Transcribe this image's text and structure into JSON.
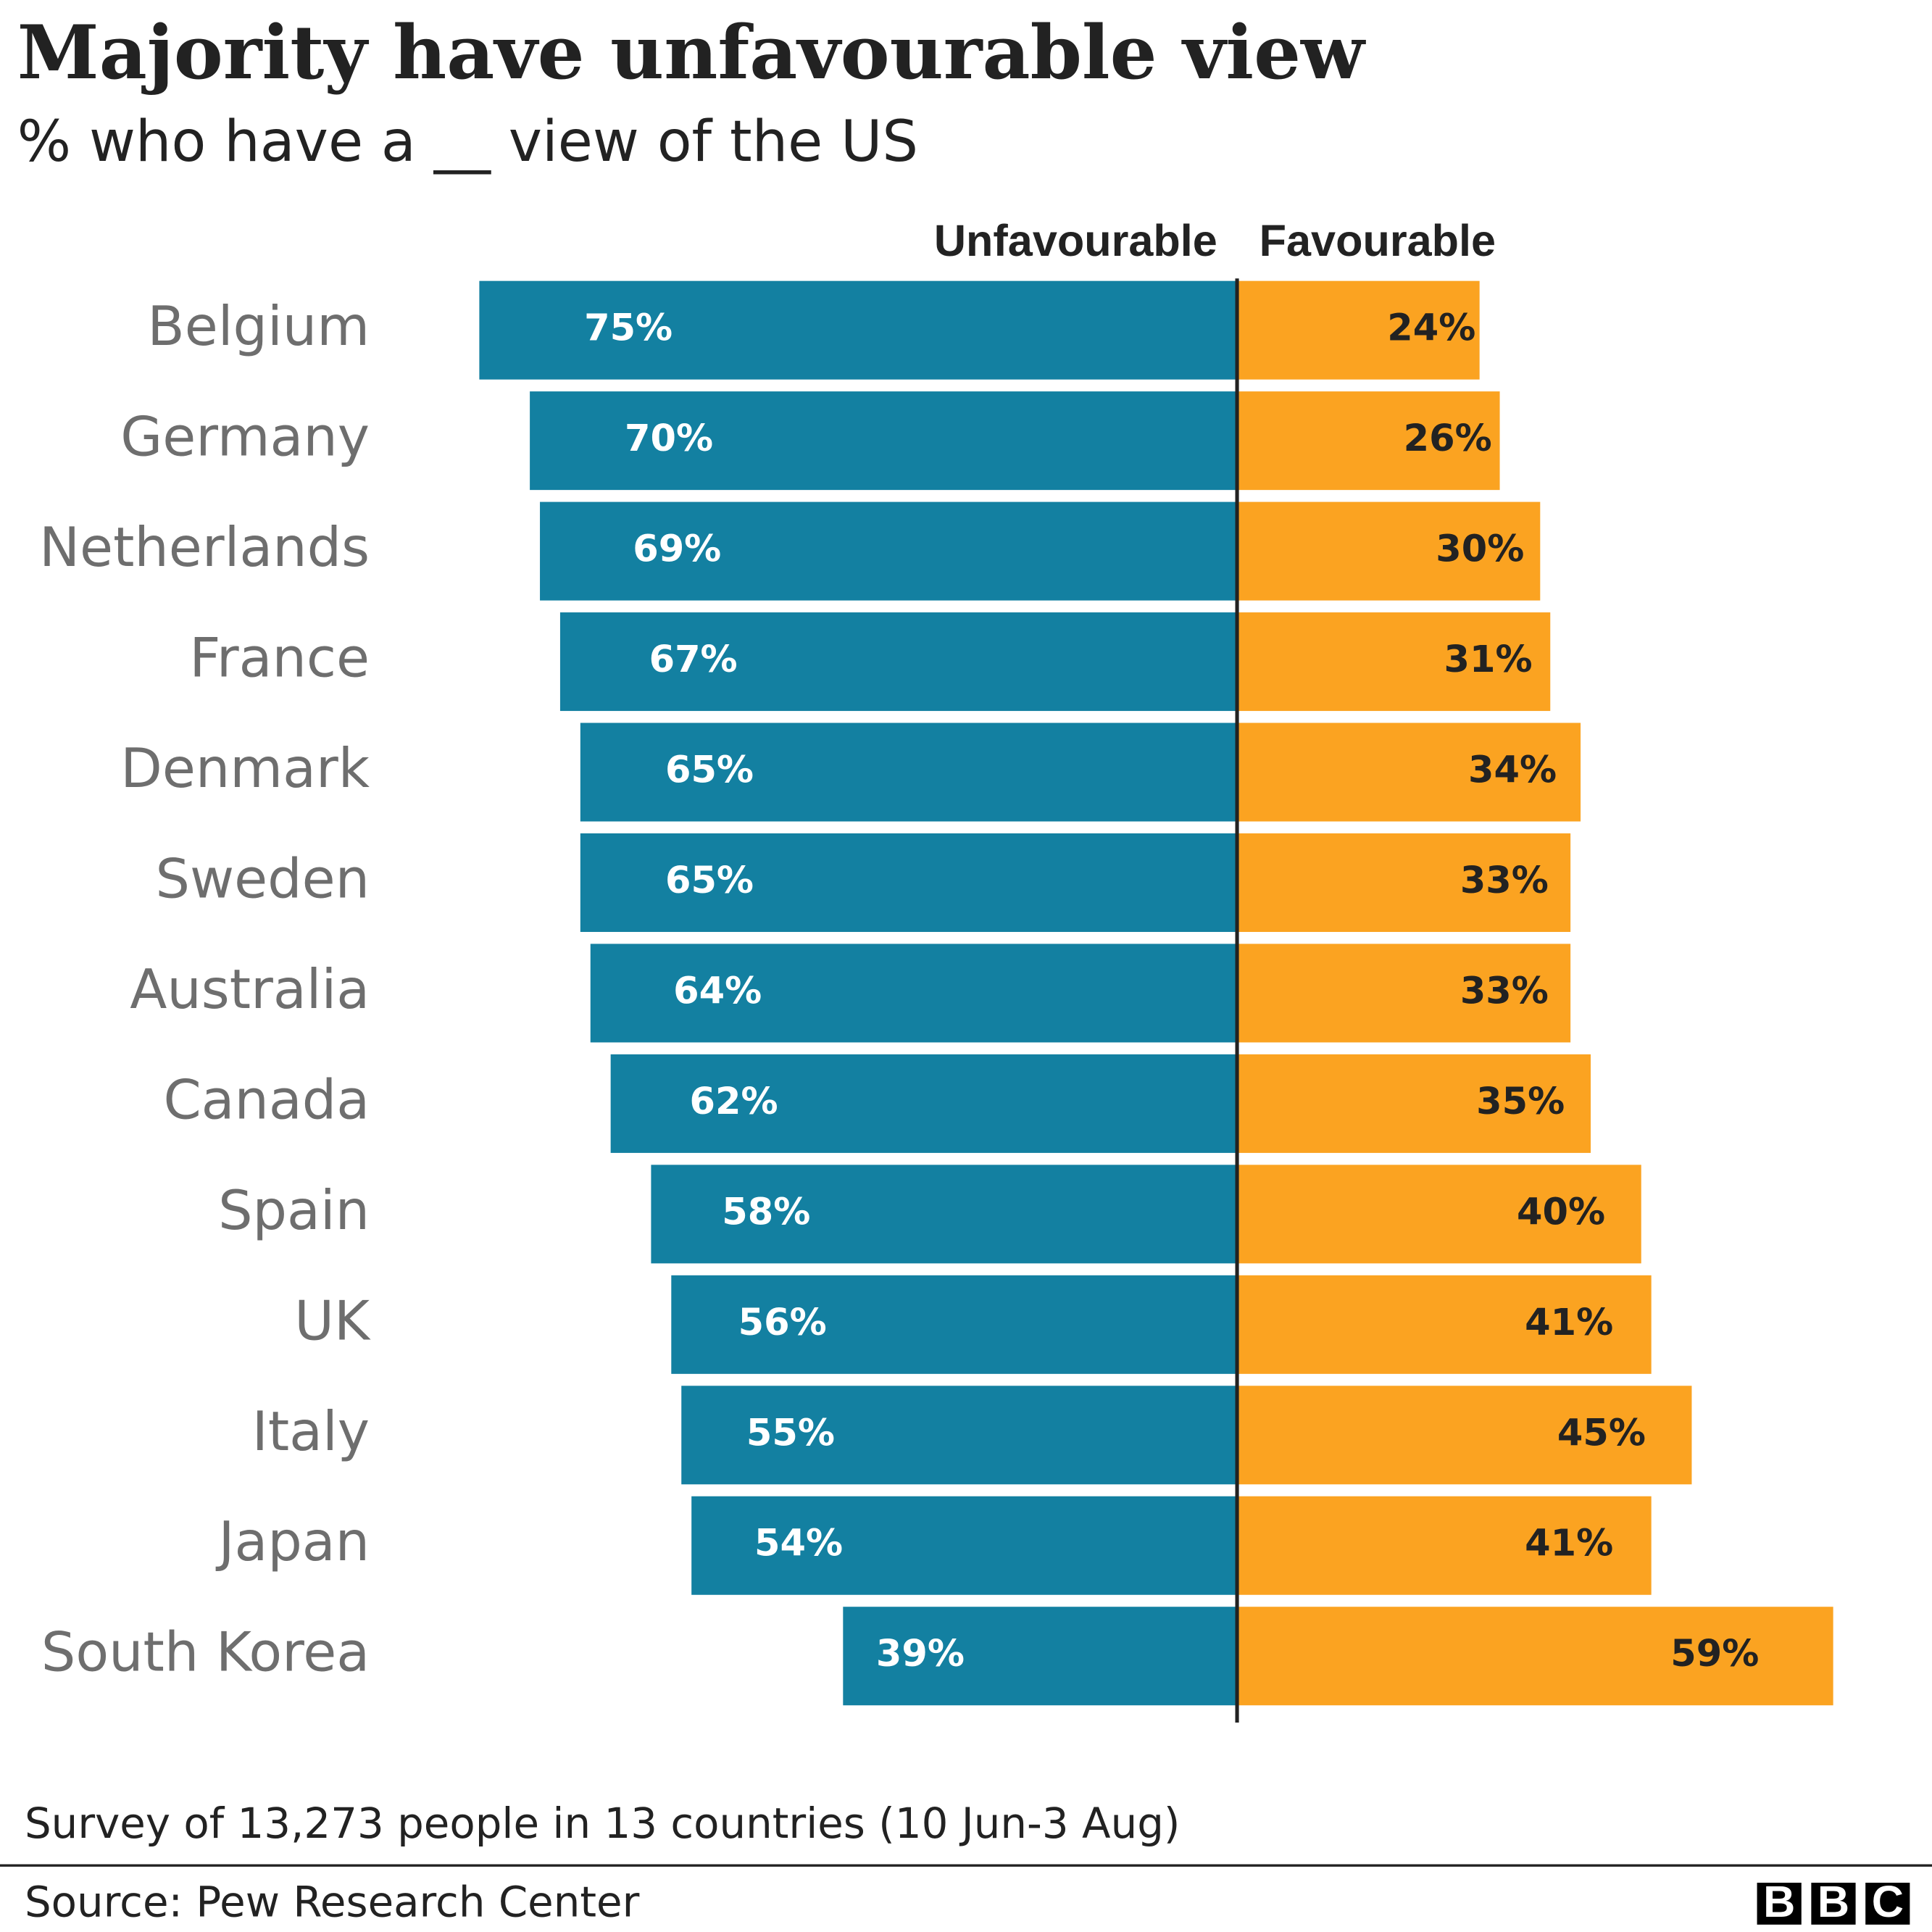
{
  "chart_data": {
    "type": "diverging_bar",
    "title": "Majority have unfavourable view",
    "subtitle": "% who have a __ view of the US",
    "categories": [
      "Belgium",
      "Germany",
      "Netherlands",
      "France",
      "Denmark",
      "Sweden",
      "Australia",
      "Canada",
      "Spain",
      "UK",
      "Italy",
      "Japan",
      "South Korea"
    ],
    "series": [
      {
        "name": "Unfavourable",
        "color": "#1380a1",
        "direction": "left",
        "values": [
          75,
          70,
          69,
          67,
          65,
          65,
          64,
          62,
          58,
          56,
          55,
          54,
          39
        ],
        "value_labels": [
          "75%",
          "70%",
          "69%",
          "67%",
          "65%",
          "65%",
          "64%",
          "62%",
          "58%",
          "56%",
          "55%",
          "54%",
          "39%"
        ]
      },
      {
        "name": "Favourable",
        "color": "#fba321",
        "direction": "right",
        "values": [
          24,
          26,
          30,
          31,
          34,
          33,
          33,
          35,
          40,
          41,
          45,
          41,
          59
        ],
        "value_labels": [
          "24%",
          "26%",
          "30%",
          "31%",
          "34%",
          "33%",
          "33%",
          "35%",
          "40%",
          "41%",
          "45%",
          "41%",
          "59%"
        ]
      }
    ],
    "note": "Survey of 13,273 people in 13 countries (10 Jun-3 Aug)",
    "source": "Source: Pew Research Center"
  },
  "logo": [
    "B",
    "B",
    "C"
  ]
}
